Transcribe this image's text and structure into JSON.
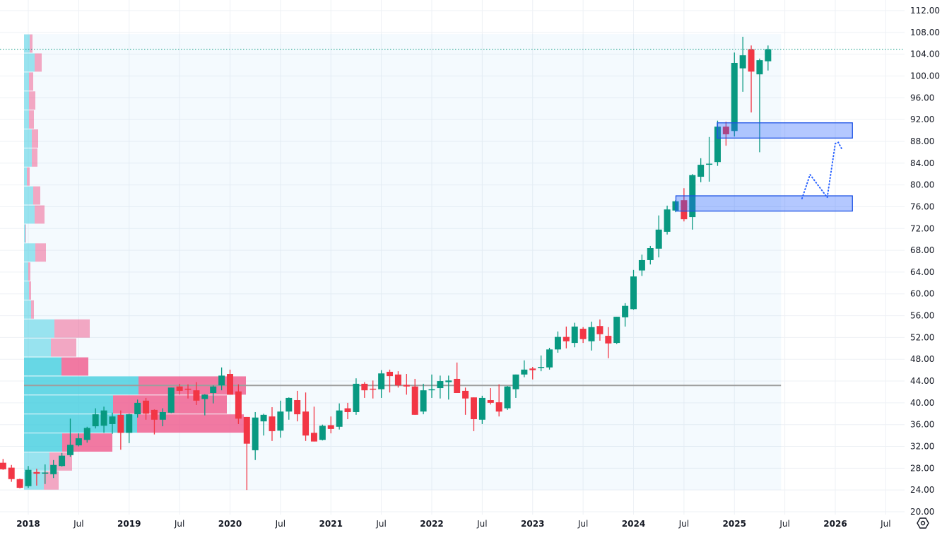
{
  "chart_data": {
    "type": "candlestick",
    "interval": "monthly",
    "title": "",
    "ylim": [
      20,
      112
    ],
    "y_ticks": [
      "112.00",
      "108.00",
      "104.00",
      "100.00",
      "96.00",
      "92.00",
      "88.00",
      "84.00",
      "80.00",
      "76.00",
      "72.00",
      "68.00",
      "64.00",
      "60.00",
      "56.00",
      "52.00",
      "48.00",
      "44.00",
      "40.00",
      "36.00",
      "32.00",
      "28.00",
      "24.00",
      "20.00"
    ],
    "x_ticks": [
      {
        "label": "2018",
        "t": 2018.0,
        "year": true
      },
      {
        "label": "Jul",
        "t": 2018.5,
        "year": false
      },
      {
        "label": "2019",
        "t": 2019.0,
        "year": true
      },
      {
        "label": "Jul",
        "t": 2019.5,
        "year": false
      },
      {
        "label": "2020",
        "t": 2020.0,
        "year": true
      },
      {
        "label": "Jul",
        "t": 2020.5,
        "year": false
      },
      {
        "label": "2021",
        "t": 2021.0,
        "year": true
      },
      {
        "label": "Jul",
        "t": 2021.5,
        "year": false
      },
      {
        "label": "2022",
        "t": 2022.0,
        "year": true
      },
      {
        "label": "Jul",
        "t": 2022.5,
        "year": false
      },
      {
        "label": "2023",
        "t": 2023.0,
        "year": true
      },
      {
        "label": "Jul",
        "t": 2023.5,
        "year": false
      },
      {
        "label": "2024",
        "t": 2024.0,
        "year": true
      },
      {
        "label": "Jul",
        "t": 2024.5,
        "year": false
      },
      {
        "label": "2025",
        "t": 2025.0,
        "year": true
      },
      {
        "label": "Jul",
        "t": 2025.5,
        "year": false
      },
      {
        "label": "2026",
        "t": 2026.0,
        "year": true
      },
      {
        "label": "Jul",
        "t": 2026.5,
        "year": false
      }
    ],
    "first_candle": "2017-10",
    "candles_ohlc": [
      [
        29.0,
        29.7,
        27.7,
        27.8
      ],
      [
        28.1,
        28.6,
        25.5,
        26.0
      ],
      [
        26.0,
        26.1,
        24.3,
        24.4
      ],
      [
        24.7,
        28.4,
        24.4,
        27.7
      ],
      [
        27.3,
        27.9,
        24.8,
        27.0
      ],
      [
        27.1,
        28.7,
        25.1,
        27.2
      ],
      [
        26.9,
        29.5,
        26.2,
        28.6
      ],
      [
        28.4,
        30.8,
        28.3,
        30.3
      ],
      [
        30.4,
        37.1,
        30.1,
        32.3
      ],
      [
        32.2,
        34.4,
        32.0,
        33.5
      ],
      [
        33.2,
        35.6,
        32.7,
        35.4
      ],
      [
        35.7,
        39.0,
        35.3,
        37.9
      ],
      [
        35.8,
        39.3,
        34.5,
        38.6
      ],
      [
        36.1,
        38.2,
        34.3,
        37.5
      ],
      [
        37.8,
        38.6,
        31.4,
        34.5
      ],
      [
        34.5,
        38.0,
        32.6,
        37.9
      ],
      [
        37.9,
        40.6,
        37.3,
        40.0
      ],
      [
        40.4,
        40.9,
        36.9,
        38.0
      ],
      [
        38.7,
        38.8,
        34.2,
        36.9
      ],
      [
        36.9,
        39.0,
        35.7,
        38.3
      ],
      [
        38.2,
        42.8,
        38.1,
        42.8
      ],
      [
        43.0,
        43.5,
        41.5,
        42.2
      ],
      [
        42.6,
        43.4,
        40.8,
        42.4
      ],
      [
        42.3,
        43.8,
        39.6,
        40.4
      ],
      [
        40.7,
        41.6,
        37.7,
        41.5
      ],
      [
        41.8,
        43.2,
        39.9,
        43.0
      ],
      [
        43.2,
        46.5,
        42.3,
        45.0
      ],
      [
        45.3,
        46.1,
        41.5,
        41.5
      ],
      [
        42.1,
        43.4,
        36.1,
        37.1
      ],
      [
        37.4,
        37.4,
        24.0,
        32.5
      ],
      [
        31.3,
        38.3,
        29.5,
        37.3
      ],
      [
        36.6,
        38.0,
        34.0,
        37.8
      ],
      [
        37.5,
        39.2,
        33.0,
        34.8
      ],
      [
        34.9,
        40.4,
        33.6,
        38.4
      ],
      [
        38.4,
        41.0,
        36.9,
        40.9
      ],
      [
        40.5,
        42.2,
        36.6,
        37.9
      ],
      [
        38.4,
        41.9,
        33.0,
        34.0
      ],
      [
        34.5,
        39.3,
        32.9,
        32.9
      ],
      [
        33.2,
        36.0,
        33.1,
        35.8
      ],
      [
        35.9,
        37.5,
        34.4,
        35.2
      ],
      [
        35.6,
        39.9,
        35.1,
        38.6
      ],
      [
        39.0,
        40.0,
        37.0,
        38.3
      ],
      [
        38.3,
        44.5,
        37.8,
        43.5
      ],
      [
        43.5,
        43.8,
        40.9,
        42.3
      ],
      [
        42.6,
        44.1,
        40.8,
        42.5
      ],
      [
        42.5,
        46.0,
        40.9,
        45.4
      ],
      [
        45.7,
        46.1,
        41.9,
        44.9
      ],
      [
        45.2,
        45.8,
        42.8,
        43.2
      ],
      [
        43.3,
        45.3,
        41.5,
        43.0
      ],
      [
        43.0,
        44.4,
        37.8,
        37.8
      ],
      [
        38.4,
        43.5,
        37.9,
        42.3
      ],
      [
        42.3,
        45.2,
        40.9,
        42.5
      ],
      [
        42.7,
        45.0,
        40.8,
        44.0
      ],
      [
        43.8,
        45.0,
        40.6,
        44.1
      ],
      [
        44.4,
        47.4,
        41.8,
        41.8
      ],
      [
        42.2,
        42.8,
        37.8,
        40.8
      ],
      [
        41.0,
        41.0,
        34.8,
        37.0
      ],
      [
        36.9,
        41.3,
        36.1,
        40.9
      ],
      [
        40.5,
        42.7,
        39.7,
        40.0
      ],
      [
        40.1,
        43.4,
        37.5,
        38.4
      ],
      [
        39.0,
        43.1,
        38.7,
        43.0
      ],
      [
        42.5,
        45.2,
        40.9,
        45.2
      ],
      [
        45.2,
        47.8,
        44.7,
        46.1
      ],
      [
        46.3,
        46.6,
        44.3,
        46.0
      ],
      [
        46.5,
        48.7,
        45.8,
        46.6
      ],
      [
        46.5,
        50.1,
        46.1,
        49.8
      ],
      [
        49.8,
        53.1,
        49.2,
        52.1
      ],
      [
        52.1,
        54.0,
        50.0,
        51.3
      ],
      [
        51.0,
        54.7,
        50.2,
        54.0
      ],
      [
        53.6,
        53.9,
        51.0,
        51.7
      ],
      [
        51.3,
        54.9,
        49.6,
        53.9
      ],
      [
        54.1,
        55.3,
        51.4,
        52.6
      ],
      [
        52.3,
        53.9,
        48.2,
        50.9
      ],
      [
        51.0,
        55.8,
        50.8,
        55.8
      ],
      [
        55.7,
        58.3,
        54.0,
        57.8
      ],
      [
        57.2,
        64.4,
        57.1,
        63.2
      ],
      [
        64.3,
        67.2,
        63.3,
        66.2
      ],
      [
        66.2,
        68.8,
        65.4,
        68.4
      ],
      [
        68.3,
        74.4,
        66.7,
        71.8
      ],
      [
        71.4,
        76.2,
        70.9,
        75.5
      ],
      [
        75.3,
        77.2,
        75.0,
        77.0
      ],
      [
        77.2,
        79.4,
        73.3,
        73.7
      ],
      [
        74.1,
        82.0,
        71.8,
        81.8
      ],
      [
        81.5,
        84.9,
        80.5,
        83.7
      ],
      [
        83.8,
        88.8,
        80.6,
        83.9
      ],
      [
        84.2,
        91.8,
        83.5,
        90.7
      ],
      [
        90.7,
        91.6,
        87.2,
        89.3
      ],
      [
        89.9,
        104.3,
        88.9,
        102.4
      ],
      [
        101.4,
        107.2,
        97.1,
        103.8
      ],
      [
        104.9,
        105.6,
        93.3,
        100.8
      ],
      [
        100.3,
        103.2,
        86.0,
        102.9
      ],
      [
        102.7,
        105.6,
        101.0,
        104.9
      ]
    ],
    "last_price": 104.9,
    "volume_profile": {
      "price_low": 24.0,
      "price_high": 107.7,
      "poc_price": 43.2,
      "rows_top_to_bottom": [
        {
          "up": 8,
          "down": 4,
          "va": false
        },
        {
          "up": 15,
          "down": 10,
          "va": false
        },
        {
          "up": 7,
          "down": 6,
          "va": false
        },
        {
          "up": 7,
          "down": 9,
          "va": false
        },
        {
          "up": 7,
          "down": 7,
          "va": false
        },
        {
          "up": 11,
          "down": 9,
          "va": false
        },
        {
          "up": 11,
          "down": 8,
          "va": false
        },
        {
          "up": 4,
          "down": 4,
          "va": false
        },
        {
          "up": 13,
          "down": 10,
          "va": false
        },
        {
          "up": 15,
          "down": 14,
          "va": false
        },
        {
          "up": 2,
          "down": 1,
          "va": false
        },
        {
          "up": 16,
          "down": 15,
          "va": false
        },
        {
          "up": 6,
          "down": 3,
          "va": false
        },
        {
          "up": 7,
          "down": 3,
          "va": false
        },
        {
          "up": 10,
          "down": 4,
          "va": false
        },
        {
          "up": 43,
          "down": 50,
          "va": false
        },
        {
          "up": 38,
          "down": 36,
          "va": false
        },
        {
          "up": 53,
          "down": 38,
          "va": true
        },
        {
          "up": 162,
          "down": 152,
          "va": true
        },
        {
          "up": 126,
          "down": 161,
          "va": true
        },
        {
          "up": 160,
          "down": 151,
          "va": true
        },
        {
          "up": 54,
          "down": 71,
          "va": true
        },
        {
          "up": 36,
          "down": 32,
          "va": false
        },
        {
          "up": 28,
          "down": 21,
          "va": false
        }
      ]
    },
    "zones": [
      {
        "name": "upper-zone",
        "t_start": 2024.83,
        "t_end": 2026.17,
        "price_high": 91.4,
        "price_low": 88.6
      },
      {
        "name": "lower-zone",
        "t_start": 2024.42,
        "t_end": 2026.17,
        "price_high": 78.0,
        "price_low": 75.2
      }
    ],
    "projection_path": [
      {
        "t": 2025.67,
        "p": 77.5
      },
      {
        "t": 2025.75,
        "p": 81.9
      },
      {
        "t": 2025.92,
        "p": 77.7
      },
      {
        "t": 2026.0,
        "p": 87.6
      },
      {
        "t": 2026.03,
        "p": 87.8
      },
      {
        "t": 2026.07,
        "p": 86.4
      }
    ],
    "colors": {
      "up": "#089981",
      "down": "#f23645",
      "profile_up": "#4dd0e1",
      "profile_down": "#f06292",
      "zone": "#2962ff",
      "grid": "#eef1f5"
    }
  }
}
